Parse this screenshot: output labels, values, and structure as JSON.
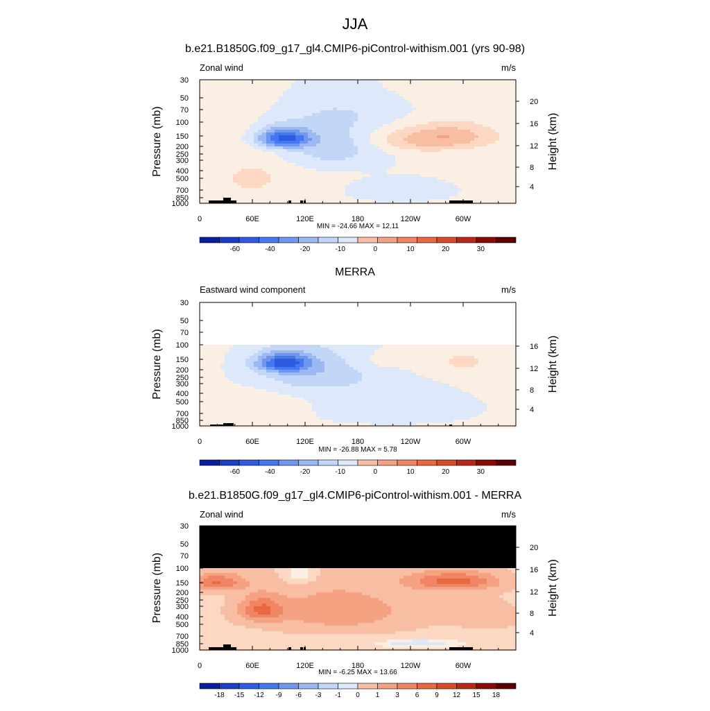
{
  "main_title": "JJA",
  "colors": {
    "ramp_18": [
      "#00006e",
      "#0a1ea0",
      "#1a3ec6",
      "#2e5be0",
      "#4478ee",
      "#6f97f0",
      "#9cb8f3",
      "#c2d6f8",
      "#dde9fb",
      "#fbeee2",
      "#fcd7c2",
      "#f7bea3",
      "#f4a282",
      "#ef8562",
      "#e86840",
      "#d94a26",
      "#b92a14",
      "#8a0a06",
      "#5a0000"
    ],
    "nodata": "#000000",
    "ground": "#000000"
  },
  "chart_data": [
    {
      "type": "heatmap",
      "title": "b.e21.B1850G.f09_g17_gl4.CMIP6-piControl-withism.001 (yrs 90-98)",
      "left_string": "Zonal wind",
      "right_string": "m/s",
      "ylabel": "Pressure (mb)",
      "ylabel_right": "Height (km)",
      "x_ticks": [
        "0",
        "60E",
        "120E",
        "180",
        "120W",
        "60W"
      ],
      "y_ticks": [
        "30",
        "50",
        "70",
        "100",
        "150",
        "200",
        "250",
        "300",
        "400",
        "500",
        "700",
        "850",
        "1000"
      ],
      "y_ticks_right": [
        "20",
        "16",
        "12",
        "8",
        "4"
      ],
      "minmax": "MIN = -24.66  MAX =  12.11",
      "colorbar_labels": [
        "-60",
        "-40",
        "-20",
        "-10",
        "0",
        "10",
        "20",
        "30"
      ],
      "range": [
        -24.66,
        12.11
      ]
    },
    {
      "type": "heatmap",
      "title": "MERRA",
      "left_string": "Eastward wind component",
      "right_string": "m/s",
      "ylabel": "Pressure (mb)",
      "ylabel_right": "Height (km)",
      "x_ticks": [
        "0",
        "60E",
        "120E",
        "180",
        "120W",
        "60W"
      ],
      "y_ticks": [
        "30",
        "50",
        "70",
        "100",
        "150",
        "200",
        "250",
        "300",
        "400",
        "500",
        "700",
        "850",
        "1000"
      ],
      "y_ticks_right": [
        "16",
        "12",
        "8",
        "4"
      ],
      "minmax": "MIN = -26.88  MAX =  5.78",
      "colorbar_labels": [
        "-60",
        "-40",
        "-20",
        "-10",
        "0",
        "10",
        "20",
        "30"
      ],
      "range": [
        -26.88,
        5.78
      ]
    },
    {
      "type": "heatmap",
      "title": "b.e21.B1850G.f09_g17_gl4.CMIP6-piControl-withism.001 - MERRA",
      "left_string": "Zonal wind",
      "right_string": "m/s",
      "ylabel": "Pressure (mb)",
      "ylabel_right": "Height (km)",
      "x_ticks": [
        "0",
        "60E",
        "120E",
        "180",
        "120W",
        "60W"
      ],
      "y_ticks": [
        "30",
        "50",
        "70",
        "100",
        "150",
        "200",
        "250",
        "300",
        "400",
        "500",
        "700",
        "850",
        "1000"
      ],
      "y_ticks_right": [
        "20",
        "16",
        "12",
        "8",
        "4"
      ],
      "minmax": "MIN = -6.25  MAX =  13.66",
      "colorbar_labels": [
        "-18",
        "-15",
        "-12",
        "-9",
        "-6",
        "-3",
        "-1",
        "0",
        "1",
        "3",
        "6",
        "9",
        "12",
        "15",
        "18"
      ],
      "range": [
        -6.25,
        13.66
      ]
    }
  ]
}
